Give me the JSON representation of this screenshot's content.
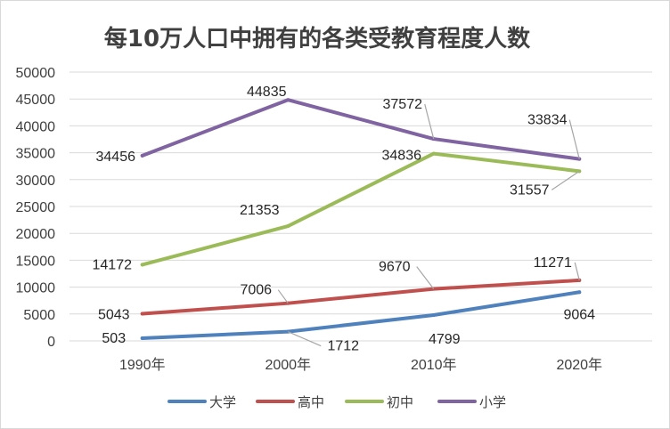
{
  "chart_data": {
    "type": "line",
    "title": "每10万人口中拥有的各类受教育程度人数",
    "categories": [
      "1990年",
      "2000年",
      "2010年",
      "2020年"
    ],
    "ylim": [
      0,
      50000
    ],
    "yticks": [
      "0",
      "5000",
      "10000",
      "15000",
      "20000",
      "25000",
      "30000",
      "35000",
      "40000",
      "45000",
      "50000"
    ],
    "grid": true,
    "legend_position": "bottom",
    "series": [
      {
        "name": "大学",
        "color": "#4f81bd",
        "values": [
          503,
          1712,
          4799,
          9064
        ]
      },
      {
        "name": "高中",
        "color": "#c0504d",
        "values": [
          5043,
          7006,
          9670,
          11271
        ]
      },
      {
        "name": "初中",
        "color": "#9bbb59",
        "values": [
          14172,
          21353,
          34836,
          31557
        ]
      },
      {
        "name": "小学",
        "color": "#8064a2",
        "values": [
          34456,
          44835,
          37572,
          33834
        ]
      }
    ]
  }
}
